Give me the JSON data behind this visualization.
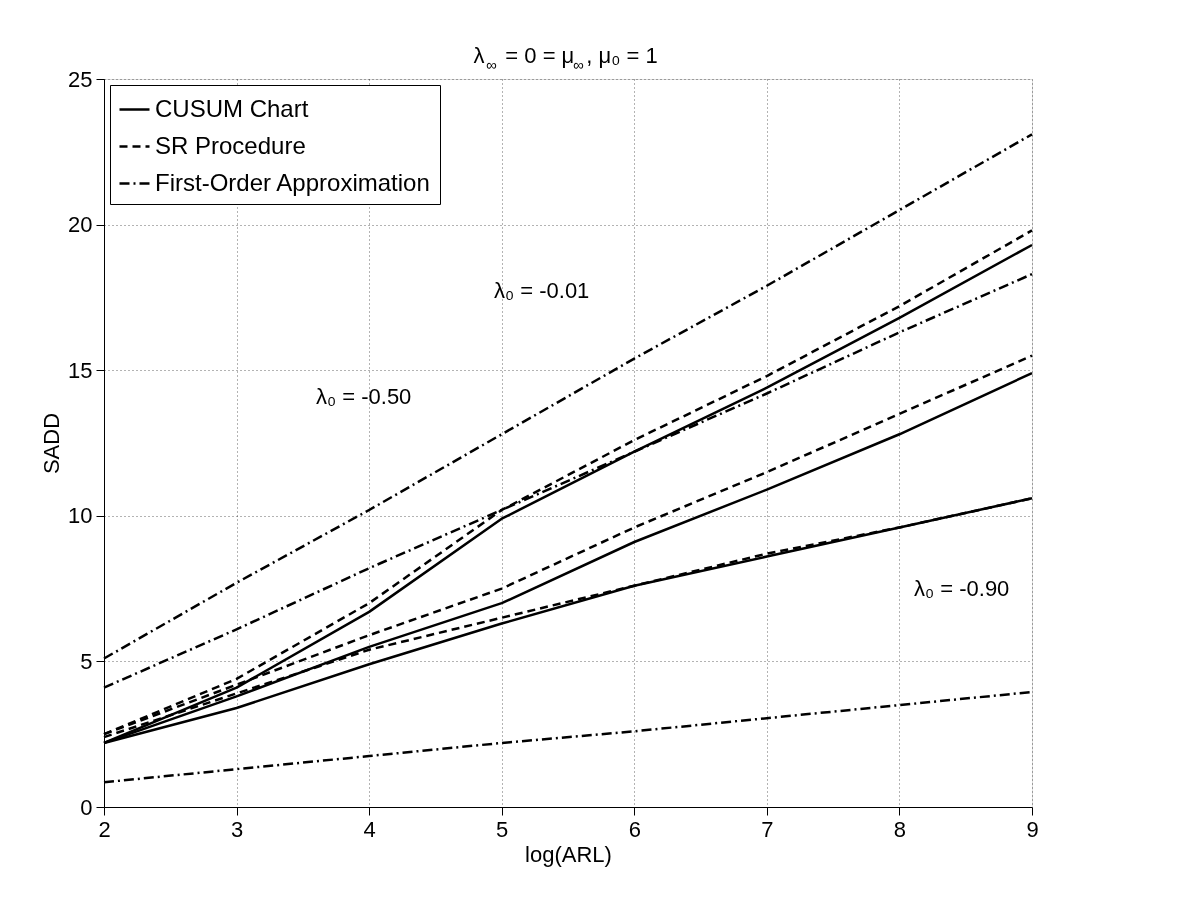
{
  "chart_data": {
    "type": "line",
    "title": "λ$_{∞}$ = 0 = μ$_{∞}$, μ₀ = 1",
    "xlabel": "log(ARL)",
    "ylabel": "SADD",
    "x": [
      2,
      3,
      4,
      5,
      6,
      7,
      8,
      9
    ],
    "series": [
      {
        "name": "CUSUM Chart",
        "color": "#000000",
        "line_style": "solid",
        "values": [
          2.2,
          4.1,
          6.7,
          9.9,
          12.2,
          14.4,
          16.8,
          19.3
        ]
      },
      {
        "name": "SR Procedure",
        "color": "#000000",
        "line_style": "dashed",
        "values": [
          2.5,
          4.4,
          7.0,
          10.2,
          12.6,
          14.8,
          17.2,
          19.8
        ]
      },
      {
        "name": "First-Order Approximation",
        "color": "#000000",
        "line_style": "dashdot",
        "values": [
          5.1,
          7.7,
          10.2,
          12.8,
          15.4,
          17.9,
          20.5,
          23.1
        ]
      },
      {
        "color": "#000000",
        "line_style": "solid",
        "values": [
          2.2,
          3.8,
          5.5,
          7.0,
          9.1,
          10.9,
          12.8,
          14.9
        ]
      },
      {
        "color": "#000000",
        "line_style": "dashed",
        "values": [
          2.5,
          4.2,
          5.9,
          7.5,
          9.6,
          11.5,
          13.5,
          15.5
        ]
      },
      {
        "color": "#000000",
        "line_style": "dashdot",
        "values": [
          4.1,
          6.1,
          8.2,
          10.2,
          12.2,
          14.2,
          16.3,
          18.3
        ]
      },
      {
        "color": "#000000",
        "line_style": "solid",
        "values": [
          2.2,
          3.4,
          4.9,
          6.3,
          7.6,
          8.6,
          9.6,
          10.6
        ]
      },
      {
        "color": "#000000",
        "line_style": "dashed",
        "values": [
          2.4,
          3.9,
          5.4,
          6.5,
          7.6,
          8.7,
          9.6,
          10.6
        ]
      },
      {
        "color": "#000000",
        "line_style": "dashdot",
        "values": [
          0.85,
          1.3,
          1.75,
          2.2,
          2.6,
          3.05,
          3.5,
          3.95
        ]
      }
    ],
    "annotations": [
      "λ₀ = -0.50",
      "λ₀ = -0.01",
      "λ₀ = -0.90"
    ],
    "xlim": [
      2,
      9
    ],
    "ylim": [
      0,
      25
    ],
    "xticks": [
      2,
      3,
      4,
      5,
      6,
      7,
      8,
      9
    ],
    "yticks": [
      0,
      5,
      10,
      15,
      20,
      25
    ],
    "grid": true,
    "legend": "top left",
    "marker": "none"
  }
}
